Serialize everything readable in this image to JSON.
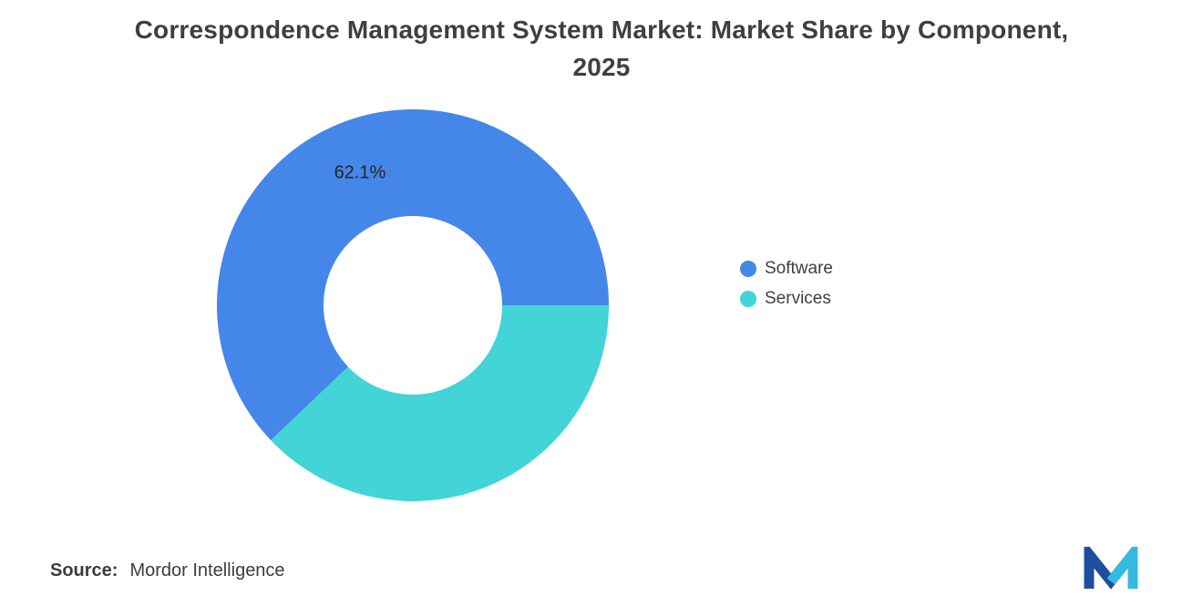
{
  "title": {
    "line1": "Correspondence Management System Market: Market Share by Component,",
    "line2": "2025"
  },
  "chart_data": {
    "type": "pie",
    "donut": true,
    "title": "Correspondence Management System Market: Market Share by Component, 2025",
    "categories": [
      "Software",
      "Services"
    ],
    "values": [
      62.1,
      37.9
    ],
    "labels": [
      "62.1%",
      ""
    ],
    "colors": [
      "#4587E8",
      "#42D4D6"
    ],
    "legend_position": "right",
    "inner_radius_ratio": 0.456
  },
  "legend": {
    "items": [
      {
        "label": "Software",
        "color": "#4587E8"
      },
      {
        "label": "Services",
        "color": "#42D4D6"
      }
    ]
  },
  "source": {
    "prefix": "Source:",
    "text": "Mordor Intelligence"
  },
  "logo": {
    "navy": "#1E4F9E",
    "cyan": "#35BADF"
  }
}
